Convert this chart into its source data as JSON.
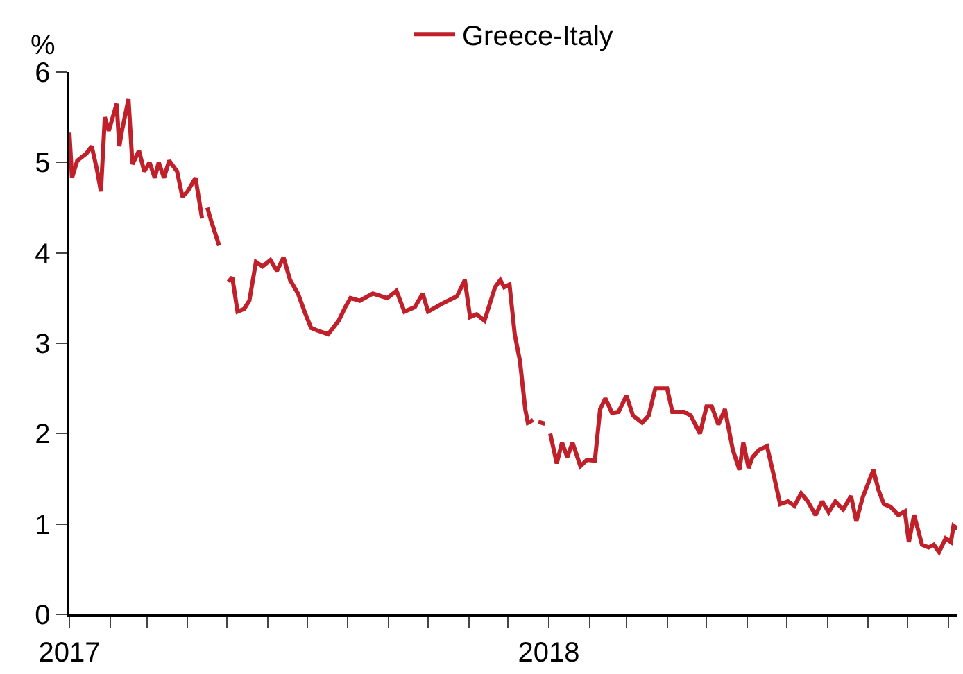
{
  "chart_data": {
    "type": "line",
    "ylabel": "%",
    "legend": "top",
    "line_style": "solid",
    "marker": "none",
    "ylim": [
      0,
      6
    ],
    "yticks": [
      0,
      1,
      2,
      3,
      4,
      5,
      6
    ],
    "xlim": [
      "2017-01-01",
      "2018-11-08"
    ],
    "xticks": [
      {
        "value": "2017-01-01",
        "label": "2017"
      },
      {
        "value": "2017-02-01",
        "label": null
      },
      {
        "value": "2017-03-01",
        "label": null
      },
      {
        "value": "2017-04-01",
        "label": null
      },
      {
        "value": "2017-05-01",
        "label": null
      },
      {
        "value": "2017-06-01",
        "label": null
      },
      {
        "value": "2017-07-01",
        "label": null
      },
      {
        "value": "2017-08-01",
        "label": null
      },
      {
        "value": "2017-09-01",
        "label": null
      },
      {
        "value": "2017-10-01",
        "label": null
      },
      {
        "value": "2017-11-01",
        "label": null
      },
      {
        "value": "2017-12-01",
        "label": null
      },
      {
        "value": "2018-01-01",
        "label": "2018"
      },
      {
        "value": "2018-02-01",
        "label": null
      },
      {
        "value": "2018-03-01",
        "label": null
      },
      {
        "value": "2018-04-01",
        "label": null
      },
      {
        "value": "2018-05-01",
        "label": null
      },
      {
        "value": "2018-06-01",
        "label": null
      },
      {
        "value": "2018-07-01",
        "label": null
      },
      {
        "value": "2018-08-01",
        "label": null
      },
      {
        "value": "2018-09-01",
        "label": null
      },
      {
        "value": "2018-10-01",
        "label": null
      },
      {
        "value": "2018-11-01",
        "label": null
      }
    ],
    "x": [
      "2017-01-01",
      "2017-01-03",
      "2017-01-07",
      "2017-01-14",
      "2017-01-18",
      "2017-01-20",
      "2017-01-22",
      "2017-01-25",
      "2017-01-28",
      "2017-01-31",
      "2017-02-06",
      "2017-02-08",
      "2017-02-10",
      "2017-02-15",
      "2017-02-18",
      "2017-02-23",
      "2017-02-27",
      "2017-03-03",
      "2017-03-07",
      "2017-03-10",
      "2017-03-14",
      "2017-03-18",
      "2017-03-24",
      "2017-03-28",
      "2017-04-01",
      "2017-04-07",
      "2017-04-12",
      "2017-04-14",
      "2017-04-16",
      "2017-04-19",
      "2017-04-25",
      "2017-04-28",
      "2017-05-02",
      "2017-05-05",
      "2017-05-09",
      "2017-05-14",
      "2017-05-18",
      "2017-05-23",
      "2017-05-28",
      "2017-06-03",
      "2017-06-08",
      "2017-06-13",
      "2017-06-18",
      "2017-06-24",
      "2017-06-29",
      "2017-07-04",
      "2017-07-09",
      "2017-07-17",
      "2017-07-25",
      "2017-07-30",
      "2017-08-03",
      "2017-08-10",
      "2017-08-20",
      "2017-08-31",
      "2017-09-07",
      "2017-09-13",
      "2017-09-21",
      "2017-09-27",
      "2017-10-01",
      "2017-10-12",
      "2017-10-23",
      "2017-10-29",
      "2017-11-02",
      "2017-11-07",
      "2017-11-13",
      "2017-11-21",
      "2017-11-25",
      "2017-11-28",
      "2017-12-02",
      "2017-12-06",
      "2017-12-10",
      "2017-12-14",
      "2017-12-16",
      "2017-12-20",
      "2017-12-22",
      "2017-12-24",
      "2017-12-29",
      "2017-12-31",
      "2018-01-02",
      "2018-01-07",
      "2018-01-11",
      "2018-01-15",
      "2018-01-19",
      "2018-01-25",
      "2018-01-30",
      "2018-02-05",
      "2018-02-09",
      "2018-02-13",
      "2018-02-18",
      "2018-02-23",
      "2018-03-01",
      "2018-03-06",
      "2018-03-13",
      "2018-03-18",
      "2018-03-23",
      "2018-04-01",
      "2018-04-05",
      "2018-04-14",
      "2018-04-19",
      "2018-04-26",
      "2018-05-01",
      "2018-05-05",
      "2018-05-10",
      "2018-05-15",
      "2018-05-21",
      "2018-05-26",
      "2018-05-29",
      "2018-06-02",
      "2018-06-05",
      "2018-06-10",
      "2018-06-16",
      "2018-06-21",
      "2018-06-26",
      "2018-07-02",
      "2018-07-07",
      "2018-07-12",
      "2018-07-17",
      "2018-07-23",
      "2018-07-28",
      "2018-08-02",
      "2018-08-07",
      "2018-08-13",
      "2018-08-19",
      "2018-08-23",
      "2018-08-28",
      "2018-09-05",
      "2018-09-09",
      "2018-09-13",
      "2018-09-18",
      "2018-09-24",
      "2018-09-29",
      "2018-10-02",
      "2018-10-06",
      "2018-10-12",
      "2018-10-17",
      "2018-10-21",
      "2018-10-25",
      "2018-10-30",
      "2018-11-03",
      "2018-11-05",
      "2018-11-08"
    ],
    "series": [
      {
        "name": "Greece-Italy",
        "color": "#c0202a",
        "values": [
          5.33,
          4.83,
          5.02,
          5.1,
          5.18,
          5.05,
          4.92,
          4.68,
          5.5,
          5.35,
          5.65,
          5.18,
          5.35,
          5.7,
          4.98,
          5.13,
          4.9,
          5.0,
          4.83,
          5.0,
          4.83,
          5.02,
          4.9,
          4.62,
          4.68,
          4.83,
          4.38,
          null,
          4.5,
          4.35,
          4.08,
          null,
          3.68,
          3.73,
          3.35,
          3.38,
          3.47,
          3.9,
          3.85,
          3.92,
          3.8,
          3.95,
          3.7,
          3.55,
          3.35,
          3.17,
          3.14,
          3.1,
          3.25,
          3.4,
          3.5,
          3.47,
          3.55,
          3.5,
          3.58,
          3.35,
          3.4,
          3.55,
          3.35,
          3.44,
          3.52,
          3.7,
          3.29,
          3.32,
          3.25,
          3.62,
          3.7,
          3.62,
          3.65,
          3.1,
          2.8,
          2.27,
          2.12,
          2.15,
          null,
          2.13,
          2.11,
          null,
          2.0,
          1.67,
          1.9,
          1.74,
          1.9,
          1.64,
          1.71,
          1.7,
          2.27,
          2.39,
          2.23,
          2.24,
          2.42,
          2.2,
          2.12,
          2.2,
          2.5,
          2.5,
          2.24,
          2.24,
          2.2,
          2.0,
          2.3,
          2.3,
          2.1,
          2.27,
          1.82,
          1.6,
          1.9,
          1.62,
          1.74,
          1.82,
          1.86,
          1.55,
          1.22,
          1.25,
          1.2,
          1.34,
          1.25,
          1.1,
          1.25,
          1.13,
          1.25,
          1.16,
          1.31,
          1.03,
          1.3,
          1.6,
          1.37,
          1.22,
          1.19,
          1.1,
          1.14,
          0.8,
          1.1,
          0.77,
          0.74,
          0.77,
          0.69,
          0.84,
          0.8,
          0.98,
          0.95
        ]
      }
    ]
  }
}
